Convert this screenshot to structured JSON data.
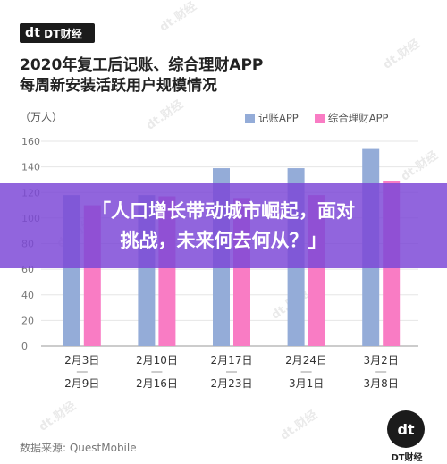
{
  "header": {
    "logo_mark": "dt",
    "logo_text": "DT财经",
    "title_line1": "2020年复工后记账、综合理财APP",
    "title_line2": "每周新安装活跃用户规模情况"
  },
  "unit_label": "（万人）",
  "source": "数据来源: QuestMobile",
  "bottom_logo": {
    "mark": "dt",
    "text": "DT财经"
  },
  "watermark_text": "dt.财经",
  "banner": {
    "line1": "「人口增长带动城市崛起，面对",
    "line2": "挑战，未来何去何从？」"
  },
  "colors": {
    "series1": "#94acd8",
    "series2": "#f97cc4",
    "grid": "#e6e6e6",
    "tick": "#777777",
    "banner_bg": "#7c48d6"
  },
  "chart_data": {
    "type": "bar",
    "categories": [
      [
        "2月3日",
        "2月9日"
      ],
      [
        "2月10日",
        "2月16日"
      ],
      [
        "2月17日",
        "2月23日"
      ],
      [
        "2月24日",
        "3月1日"
      ],
      [
        "3月2日",
        "3月8日"
      ]
    ],
    "series": [
      {
        "name": "记账APP",
        "values": [
          118,
          118,
          139,
          139,
          154
        ]
      },
      {
        "name": "综合理财APP",
        "values": [
          110,
          117,
          115,
          118,
          129
        ]
      }
    ],
    "yticks": [
      0,
      20,
      40,
      60,
      80,
      100,
      120,
      140,
      160
    ],
    "ylim": [
      0,
      160
    ],
    "ylabel": "（万人）",
    "legend": "top-right",
    "grid": true
  }
}
